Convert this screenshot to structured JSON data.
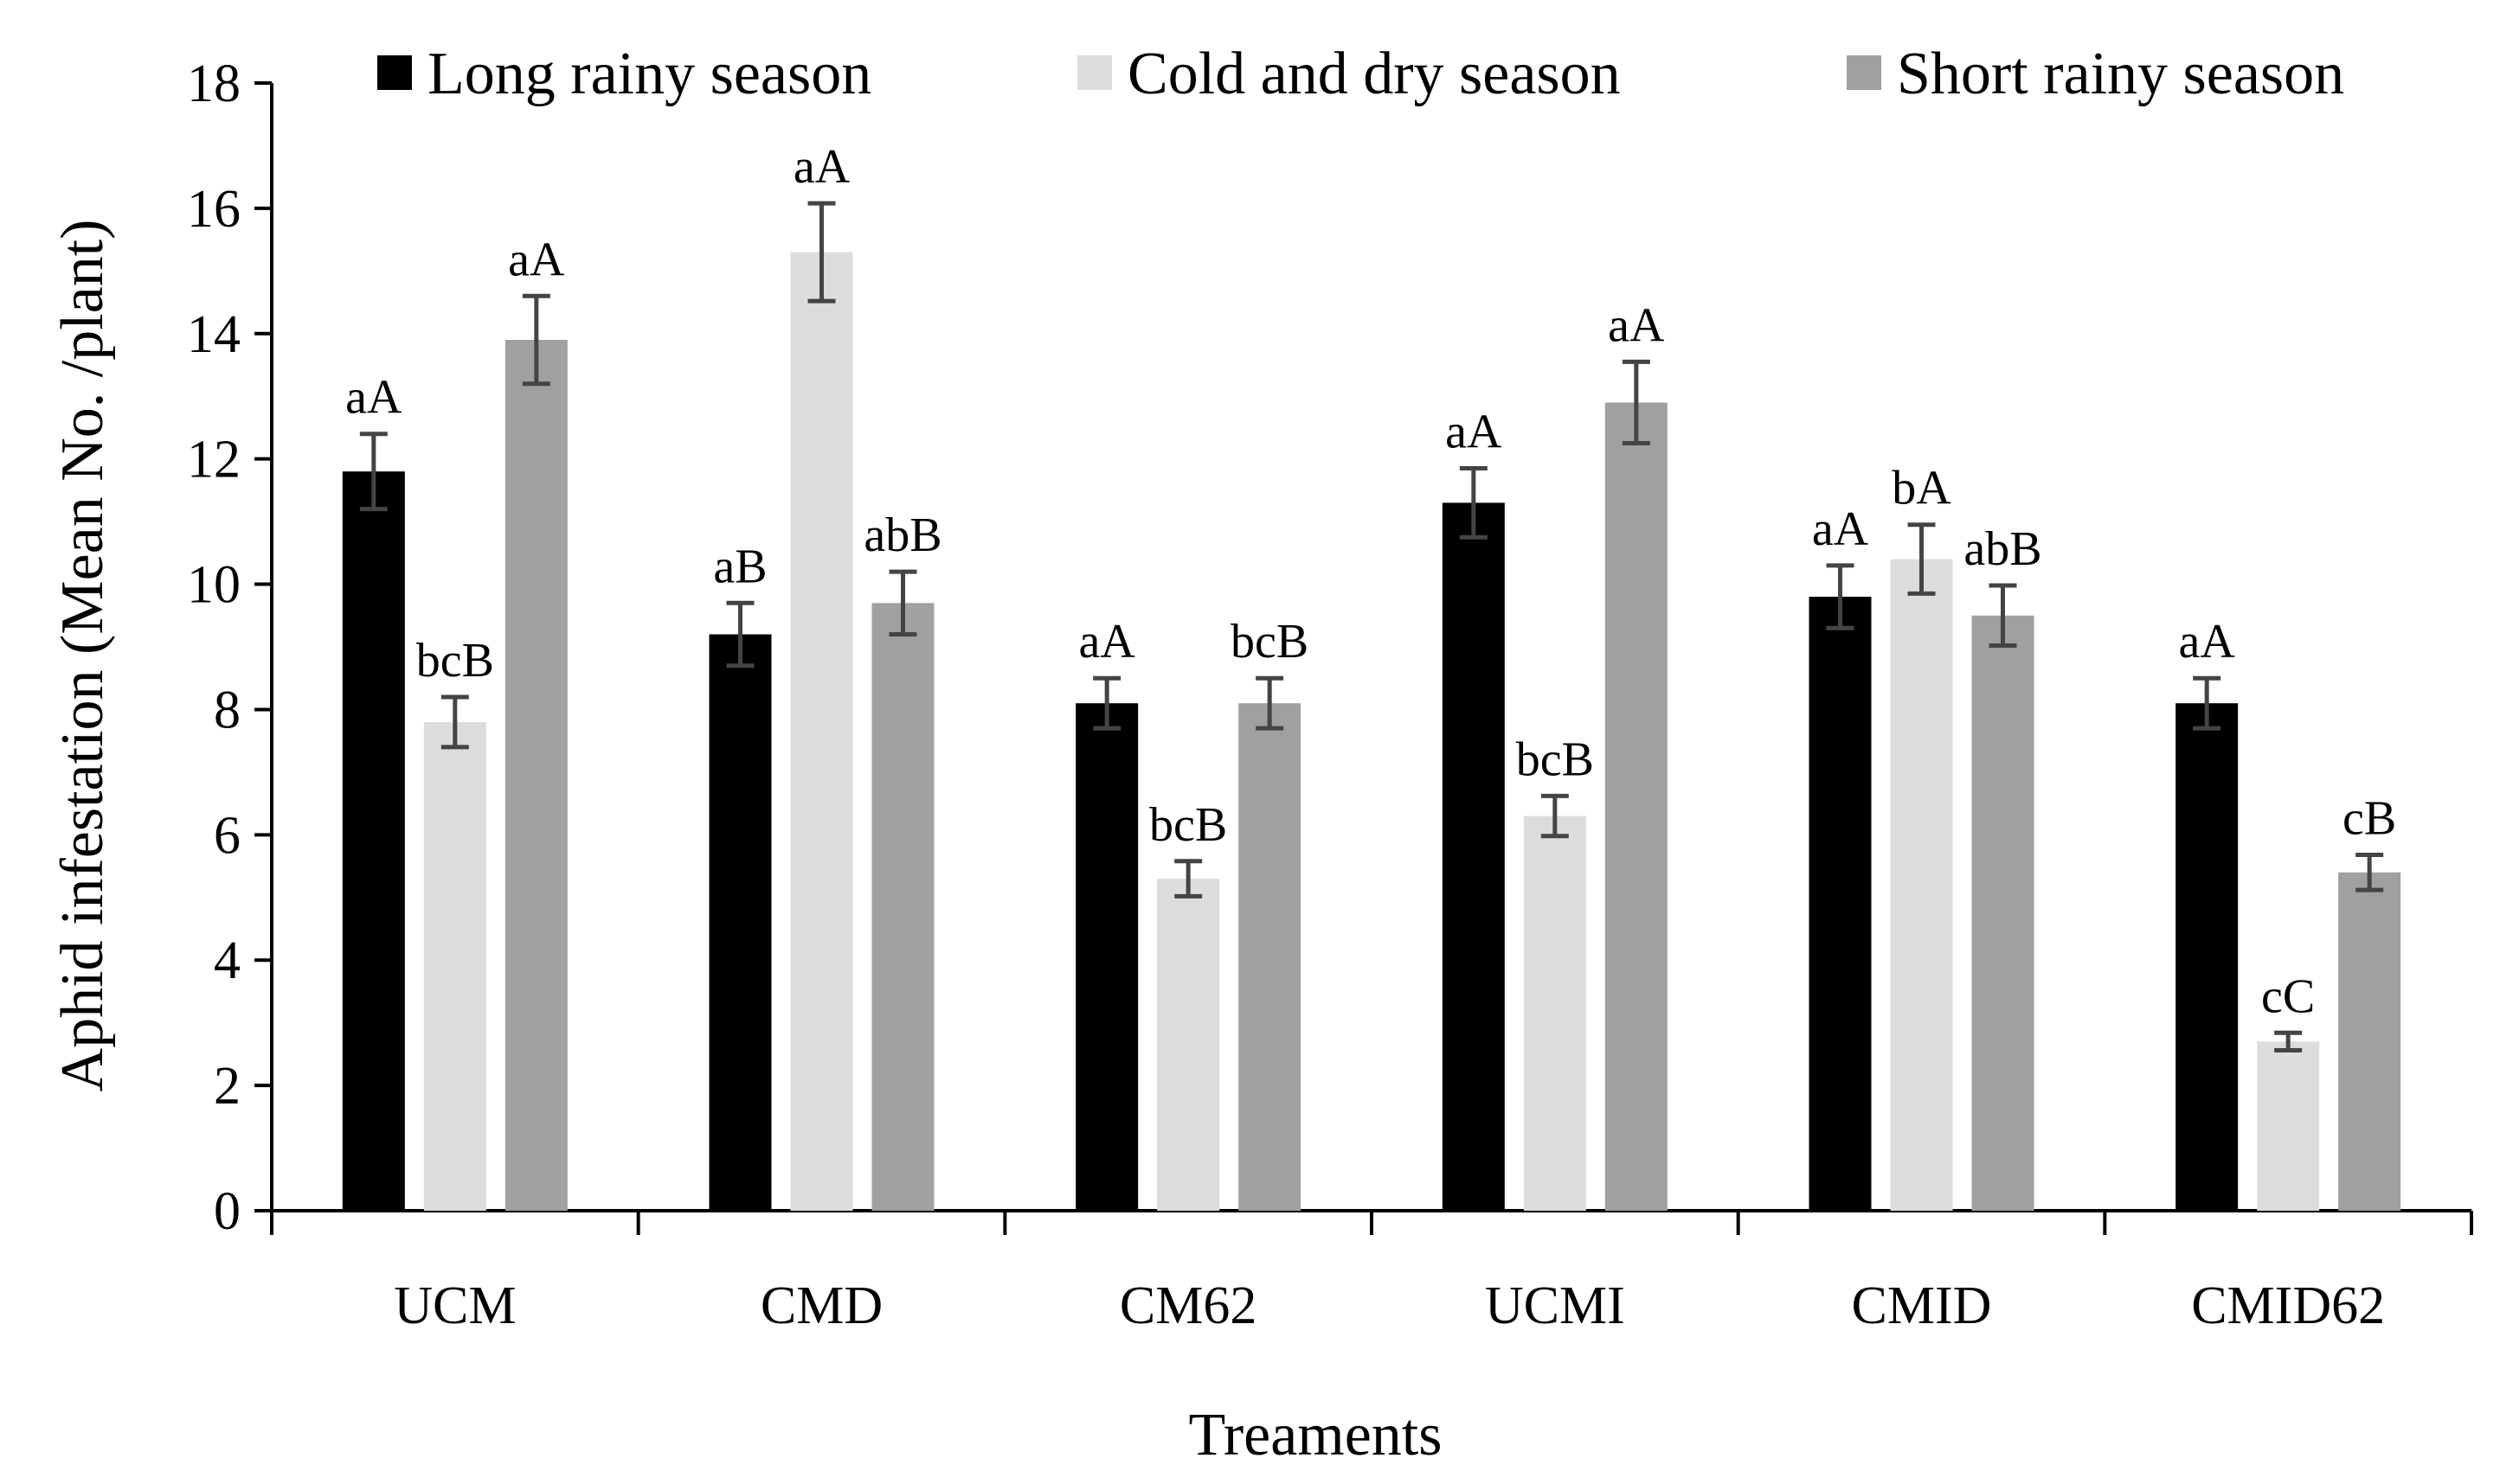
{
  "chart_data": {
    "type": "bar",
    "title": "",
    "xlabel": "Treaments",
    "ylabel": "Aphid infestation (Mean No. /plant)",
    "ylim": [
      0,
      18
    ],
    "yticks": [
      0,
      2,
      4,
      6,
      8,
      10,
      12,
      14,
      16,
      18
    ],
    "categories": [
      "UCM",
      "CMD",
      "CM62",
      "UCMI",
      "CMID",
      "CMID62"
    ],
    "legend_position": "top",
    "grid": false,
    "series": [
      {
        "name": "Long rainy season",
        "color": "#000000",
        "values": [
          11.8,
          9.2,
          8.1,
          11.3,
          9.8,
          8.1
        ],
        "errors": [
          0.6,
          0.5,
          0.4,
          0.55,
          0.5,
          0.4
        ],
        "labels": [
          "aA",
          "aB",
          "aA",
          "aA",
          "aA",
          "aA"
        ]
      },
      {
        "name": "Cold and dry season",
        "color": "#dcdcdc",
        "values": [
          7.8,
          15.3,
          5.3,
          6.3,
          10.4,
          2.7
        ],
        "errors": [
          0.4,
          0.78,
          0.28,
          0.32,
          0.55,
          0.14
        ],
        "labels": [
          "bcB",
          "aA",
          "bcB",
          "bcB",
          "bA",
          "cC"
        ]
      },
      {
        "name": "Short rainy season",
        "color": "#a0a0a0",
        "values": [
          13.9,
          9.7,
          8.1,
          12.9,
          9.5,
          5.4
        ],
        "errors": [
          0.7,
          0.5,
          0.4,
          0.65,
          0.48,
          0.28
        ],
        "labels": [
          "aA",
          "abB",
          "bcB",
          "aA",
          "abB",
          "cB"
        ]
      }
    ]
  }
}
